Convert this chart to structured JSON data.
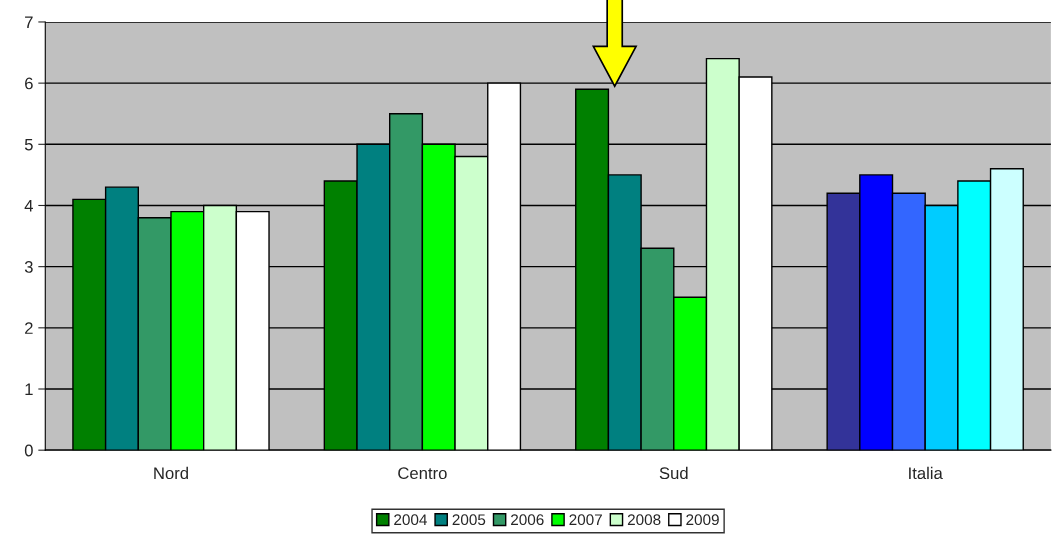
{
  "chart_data": {
    "type": "bar",
    "categories": [
      "Nord",
      "Centro",
      "Sud",
      "Italia"
    ],
    "series": [
      {
        "name": "2004",
        "color": "#008000",
        "colors": [
          "#008000",
          "#008000",
          "#008000",
          "#333399"
        ],
        "values": [
          4.1,
          4.4,
          5.9,
          4.2
        ]
      },
      {
        "name": "2005",
        "color": "#008080",
        "colors": [
          "#008080",
          "#008080",
          "#008080",
          "#0000ff"
        ],
        "values": [
          4.3,
          5.0,
          4.5,
          4.5
        ]
      },
      {
        "name": "2006",
        "color": "#339966",
        "colors": [
          "#339966",
          "#339966",
          "#339966",
          "#3366ff"
        ],
        "values": [
          3.8,
          5.5,
          3.3,
          4.2
        ]
      },
      {
        "name": "2007",
        "color": "#00ff00",
        "colors": [
          "#00ff00",
          "#00ff00",
          "#00ff00",
          "#00ccff"
        ],
        "values": [
          3.9,
          5.0,
          2.5,
          4.0
        ]
      },
      {
        "name": "2008",
        "color": "#ccffcc",
        "colors": [
          "#ccffcc",
          "#ccffcc",
          "#ccffcc",
          "#00ffff"
        ],
        "values": [
          4.0,
          4.8,
          6.4,
          4.4
        ]
      },
      {
        "name": "2009",
        "color": "#ffffff",
        "colors": [
          "#ffffff",
          "#ffffff",
          "#ffffff",
          "#ccffff"
        ],
        "values": [
          3.9,
          6.0,
          6.1,
          4.6
        ]
      }
    ],
    "ylim": [
      0,
      7
    ],
    "yticks": [
      0,
      1,
      2,
      3,
      4,
      5,
      6,
      7
    ],
    "grid": "y",
    "legend": "bottom"
  }
}
